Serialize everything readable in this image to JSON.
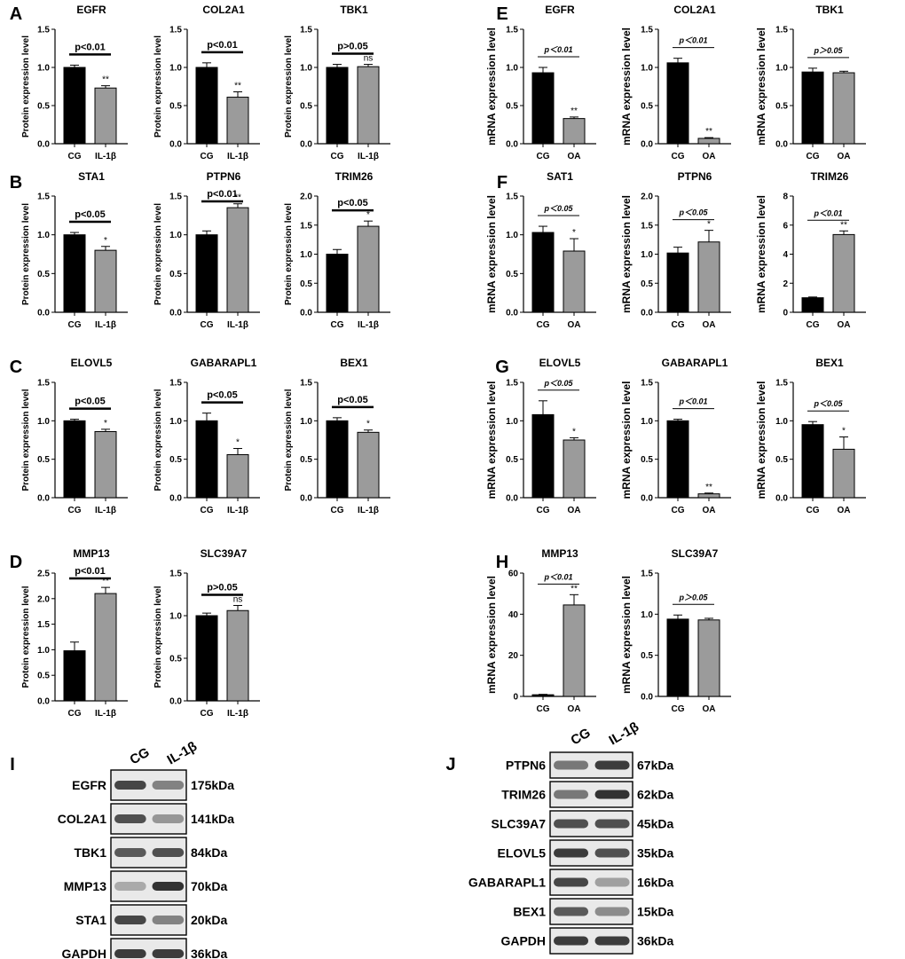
{
  "panel_letters": [
    "A",
    "B",
    "C",
    "D",
    "E",
    "F",
    "G",
    "H",
    "I",
    "J"
  ],
  "chart_data": [
    {
      "type": "bar",
      "panel": "A",
      "title": "EGFR",
      "ylabel": "Protein expression level",
      "categories": [
        "CG",
        "IL-1β"
      ],
      "values": [
        1.0,
        0.73
      ],
      "errors": [
        0.03,
        0.03
      ],
      "ylim": [
        0,
        1.5
      ],
      "yticks": [
        "0.0",
        "0.5",
        "1.0",
        "1.5"
      ],
      "significance": "p<0.01",
      "stars": "**",
      "pstyle": "bold"
    },
    {
      "type": "bar",
      "panel": "A",
      "title": "COL2A1",
      "ylabel": "Protein expression level",
      "categories": [
        "CG",
        "IL-1β"
      ],
      "values": [
        1.0,
        0.61
      ],
      "errors": [
        0.06,
        0.07
      ],
      "ylim": [
        0,
        1.5
      ],
      "yticks": [
        "0.0",
        "0.5",
        "1.0",
        "1.5"
      ],
      "significance": "p<0.01",
      "stars": "**",
      "pstyle": "bold"
    },
    {
      "type": "bar",
      "panel": "A",
      "title": "TBK1",
      "ylabel": "Protein expression level",
      "categories": [
        "CG",
        "IL-1β"
      ],
      "values": [
        1.0,
        1.01
      ],
      "errors": [
        0.04,
        0.03
      ],
      "ylim": [
        0,
        1.5
      ],
      "yticks": [
        "0.0",
        "0.5",
        "1.0",
        "1.5"
      ],
      "significance": "p>0.05",
      "stars": "ns",
      "pstyle": "bold"
    },
    {
      "type": "bar",
      "panel": "B",
      "title": "STA1",
      "ylabel": "Protein expression level",
      "categories": [
        "CG",
        "IL-1β"
      ],
      "values": [
        1.0,
        0.8
      ],
      "errors": [
        0.03,
        0.05
      ],
      "ylim": [
        0,
        1.5
      ],
      "yticks": [
        "0.0",
        "0.5",
        "1.0",
        "1.5"
      ],
      "significance": "p<0.05",
      "stars": "*",
      "pstyle": "bold"
    },
    {
      "type": "bar",
      "panel": "B",
      "title": "PTPN6",
      "ylabel": "Protein expression level",
      "categories": [
        "CG",
        "IL-1β"
      ],
      "values": [
        1.0,
        1.35
      ],
      "errors": [
        0.05,
        0.05
      ],
      "ylim": [
        0,
        1.5
      ],
      "yticks": [
        "0.0",
        "0.5",
        "1.0",
        "1.5"
      ],
      "significance": "p<0.01",
      "stars": "**",
      "pstyle": "bold"
    },
    {
      "type": "bar",
      "panel": "B",
      "title": "TRIM26",
      "ylabel": "Protein expression level",
      "categories": [
        "CG",
        "IL-1β"
      ],
      "values": [
        1.0,
        1.48
      ],
      "errors": [
        0.08,
        0.09
      ],
      "ylim": [
        0,
        2.0
      ],
      "yticks": [
        "0.0",
        "0.5",
        "1.0",
        "1.5",
        "2.0"
      ],
      "significance": "p<0.05",
      "stars": "*",
      "pstyle": "bold"
    },
    {
      "type": "bar",
      "panel": "C",
      "title": "ELOVL5",
      "ylabel": "Protein expression level",
      "categories": [
        "CG",
        "IL-1β"
      ],
      "values": [
        1.0,
        0.86
      ],
      "errors": [
        0.02,
        0.03
      ],
      "ylim": [
        0,
        1.5
      ],
      "yticks": [
        "0.0",
        "0.5",
        "1.0",
        "1.5"
      ],
      "significance": "p<0.05",
      "stars": "*",
      "pstyle": "bold"
    },
    {
      "type": "bar",
      "panel": "C",
      "title": "GABARAPL1",
      "ylabel": "Protein expression level",
      "categories": [
        "CG",
        "IL-1β"
      ],
      "values": [
        1.0,
        0.56
      ],
      "errors": [
        0.1,
        0.08
      ],
      "ylim": [
        0,
        1.5
      ],
      "yticks": [
        "0.0",
        "0.5",
        "1.0",
        "1.5"
      ],
      "significance": "p<0.05",
      "stars": "*",
      "pstyle": "bold"
    },
    {
      "type": "bar",
      "panel": "C",
      "title": "BEX1",
      "ylabel": "Protein expression level",
      "categories": [
        "CG",
        "IL-1β"
      ],
      "values": [
        1.0,
        0.85
      ],
      "errors": [
        0.04,
        0.03
      ],
      "ylim": [
        0,
        1.5
      ],
      "yticks": [
        "0.0",
        "0.5",
        "1.0",
        "1.5"
      ],
      "significance": "p<0.05",
      "stars": "*",
      "pstyle": "bold"
    },
    {
      "type": "bar",
      "panel": "D",
      "title": "MMP13",
      "ylabel": "Protein expression level",
      "categories": [
        "CG",
        "IL-1β"
      ],
      "values": [
        0.98,
        2.1
      ],
      "errors": [
        0.17,
        0.12
      ],
      "ylim": [
        0,
        2.5
      ],
      "yticks": [
        "0.0",
        "0.5",
        "1.0",
        "1.5",
        "2.0",
        "2.5"
      ],
      "significance": "p<0.01",
      "stars": "**",
      "pstyle": "bold"
    },
    {
      "type": "bar",
      "panel": "D",
      "title": "SLC39A7",
      "ylabel": "Protein expression level",
      "categories": [
        "CG",
        "IL-1β"
      ],
      "values": [
        1.0,
        1.06
      ],
      "errors": [
        0.03,
        0.06
      ],
      "ylim": [
        0,
        1.5
      ],
      "yticks": [
        "0.0",
        "0.5",
        "1.0",
        "1.5"
      ],
      "significance": "p>0.05",
      "stars": "ns",
      "pstyle": "bold"
    },
    {
      "type": "bar",
      "panel": "E",
      "title": "EGFR",
      "ylabel": "mRNA expression level",
      "categories": [
        "CG",
        "OA"
      ],
      "values": [
        0.93,
        0.33
      ],
      "errors": [
        0.07,
        0.02
      ],
      "ylim": [
        0,
        1.5
      ],
      "yticks": [
        "0.0",
        "0.5",
        "1.0",
        "1.5"
      ],
      "significance": "p＜0.01",
      "stars": "**",
      "pstyle": "italic"
    },
    {
      "type": "bar",
      "panel": "E",
      "title": "COL2A1",
      "ylabel": "mRNA expression level",
      "categories": [
        "CG",
        "OA"
      ],
      "values": [
        1.06,
        0.07
      ],
      "errors": [
        0.06,
        0.01
      ],
      "ylim": [
        0,
        1.5
      ],
      "yticks": [
        "0.0",
        "0.5",
        "1.0",
        "1.5"
      ],
      "significance": "p＜0.01",
      "stars": "**",
      "pstyle": "italic"
    },
    {
      "type": "bar",
      "panel": "E",
      "title": "TBK1",
      "ylabel": "mRNA expression level",
      "categories": [
        "CG",
        "OA"
      ],
      "values": [
        0.94,
        0.93
      ],
      "errors": [
        0.05,
        0.02
      ],
      "ylim": [
        0,
        1.5
      ],
      "yticks": [
        "0.0",
        "0.5",
        "1.0",
        "1.5"
      ],
      "significance": "p＞0.05",
      "stars": "",
      "pstyle": "italic"
    },
    {
      "type": "bar",
      "panel": "F",
      "title": "SAT1",
      "ylabel": "mRNA expression level",
      "categories": [
        "CG",
        "OA"
      ],
      "values": [
        1.03,
        0.79
      ],
      "errors": [
        0.08,
        0.16
      ],
      "ylim": [
        0,
        1.5
      ],
      "yticks": [
        "0.0",
        "0.5",
        "1.0",
        "1.5"
      ],
      "significance": "p＜0.05",
      "stars": "*",
      "pstyle": "italic"
    },
    {
      "type": "bar",
      "panel": "F",
      "title": "PTPN6",
      "ylabel": "mRNA expression level",
      "categories": [
        "CG",
        "OA"
      ],
      "values": [
        1.02,
        1.21
      ],
      "errors": [
        0.1,
        0.2
      ],
      "ylim": [
        0,
        2.0
      ],
      "yticks": [
        "0.0",
        "0.5",
        "1.0",
        "1.5",
        "2.0"
      ],
      "significance": "p＜0.05",
      "stars": "*",
      "pstyle": "italic"
    },
    {
      "type": "bar",
      "panel": "F",
      "title": "TRIM26",
      "ylabel": "mRNA expression level",
      "categories": [
        "CG",
        "OA"
      ],
      "values": [
        1.0,
        5.35
      ],
      "errors": [
        0.05,
        0.25
      ],
      "ylim": [
        0,
        8
      ],
      "yticks": [
        "0",
        "2",
        "4",
        "6",
        "8"
      ],
      "significance": "p＜0.01",
      "stars": "**",
      "pstyle": "italic"
    },
    {
      "type": "bar",
      "panel": "G",
      "title": "ELOVL5",
      "ylabel": "mRNA expression level",
      "categories": [
        "CG",
        "OA"
      ],
      "values": [
        1.08,
        0.75
      ],
      "errors": [
        0.18,
        0.03
      ],
      "ylim": [
        0,
        1.5
      ],
      "yticks": [
        "0.0",
        "0.5",
        "1.0",
        "1.5"
      ],
      "significance": "p＜0.05",
      "stars": "*",
      "pstyle": "italic"
    },
    {
      "type": "bar",
      "panel": "G",
      "title": "GABARAPL1",
      "ylabel": "mRNA expression level",
      "categories": [
        "CG",
        "OA"
      ],
      "values": [
        1.0,
        0.05
      ],
      "errors": [
        0.02,
        0.01
      ],
      "ylim": [
        0,
        1.5
      ],
      "yticks": [
        "0.0",
        "0.5",
        "1.0",
        "1.5"
      ],
      "significance": "p＜0.01",
      "stars": "**",
      "pstyle": "italic"
    },
    {
      "type": "bar",
      "panel": "G",
      "title": "BEX1",
      "ylabel": "mRNA expression level",
      "categories": [
        "CG",
        "OA"
      ],
      "values": [
        0.95,
        0.63
      ],
      "errors": [
        0.04,
        0.16
      ],
      "ylim": [
        0,
        1.5
      ],
      "yticks": [
        "0.0",
        "0.5",
        "1.0",
        "1.5"
      ],
      "significance": "p＜0.05",
      "stars": "*",
      "pstyle": "italic"
    },
    {
      "type": "bar",
      "panel": "H",
      "title": "MMP13",
      "ylabel": "mRNA expression level",
      "categories": [
        "CG",
        "OA"
      ],
      "values": [
        0.8,
        44.5
      ],
      "errors": [
        0.2,
        5.0
      ],
      "ylim": [
        0,
        60
      ],
      "yticks": [
        "0",
        "20",
        "40",
        "60"
      ],
      "significance": "p＜0.01",
      "stars": "**",
      "pstyle": "italic"
    },
    {
      "type": "bar",
      "panel": "H",
      "title": "SLC39A7",
      "ylabel": "mRNA expression level",
      "categories": [
        "CG",
        "OA"
      ],
      "values": [
        0.94,
        0.93
      ],
      "errors": [
        0.05,
        0.02
      ],
      "ylim": [
        0,
        1.5
      ],
      "yticks": [
        "0.0",
        "0.5",
        "1.0",
        "1.5"
      ],
      "significance": "p＞0.05",
      "stars": "",
      "pstyle": "italic"
    }
  ],
  "blots": [
    {
      "panel": "I",
      "columns": [
        "CG",
        "IL-1β"
      ],
      "rows": [
        {
          "protein": "EGFR",
          "size": "175kDa",
          "intensity": [
            0.85,
            0.55
          ]
        },
        {
          "protein": "COL2A1",
          "size": "141kDa",
          "intensity": [
            0.8,
            0.45
          ]
        },
        {
          "protein": "TBK1",
          "size": "84kDa",
          "intensity": [
            0.75,
            0.8
          ]
        },
        {
          "protein": "MMP13",
          "size": "70kDa",
          "intensity": [
            0.35,
            0.95
          ]
        },
        {
          "protein": "STA1",
          "size": "20kDa",
          "intensity": [
            0.85,
            0.55
          ]
        },
        {
          "protein": "GAPDH",
          "size": "36kDa",
          "intensity": [
            0.9,
            0.9
          ]
        }
      ]
    },
    {
      "panel": "J",
      "columns": [
        "CG",
        "IL-1β"
      ],
      "rows": [
        {
          "protein": "PTPN6",
          "size": "67kDa",
          "intensity": [
            0.6,
            0.9
          ]
        },
        {
          "protein": "TRIM26",
          "size": "62kDa",
          "intensity": [
            0.6,
            0.95
          ]
        },
        {
          "protein": "SLC39A7",
          "size": "45kDa",
          "intensity": [
            0.8,
            0.8
          ]
        },
        {
          "protein": "ELOVL5",
          "size": "35kDa",
          "intensity": [
            0.9,
            0.8
          ]
        },
        {
          "protein": "GABARAPL1",
          "size": "16kDa",
          "intensity": [
            0.85,
            0.4
          ]
        },
        {
          "protein": "BEX1",
          "size": "15kDa",
          "intensity": [
            0.75,
            0.5
          ]
        },
        {
          "protein": "GAPDH",
          "size": "36kDa",
          "intensity": [
            0.9,
            0.9
          ]
        }
      ]
    }
  ],
  "colors": {
    "control": "#000000",
    "treated": "#9b9b9b",
    "axis": "#000000"
  }
}
